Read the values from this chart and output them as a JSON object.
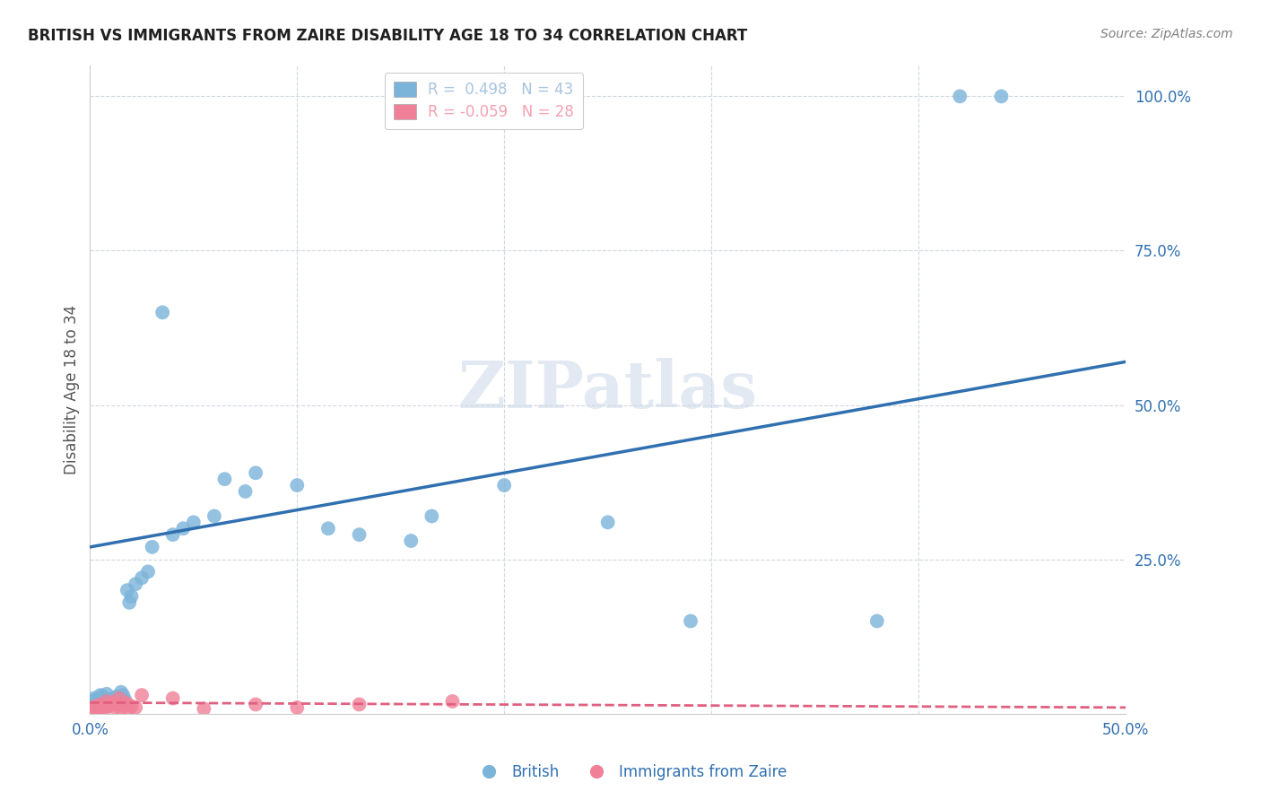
{
  "title": "BRITISH VS IMMIGRANTS FROM ZAIRE DISABILITY AGE 18 TO 34 CORRELATION CHART",
  "source": "Source: ZipAtlas.com",
  "ylabel": "Disability Age 18 to 34",
  "xlim": [
    0.0,
    0.5
  ],
  "ylim": [
    0.0,
    1.05
  ],
  "legend_items": [
    {
      "label": "R =  0.498   N = 43",
      "color": "#a8c4e0"
    },
    {
      "label": "R = -0.059   N = 28",
      "color": "#f4a0b0"
    }
  ],
  "brit_x": [
    0.001,
    0.002,
    0.003,
    0.004,
    0.005,
    0.006,
    0.007,
    0.008,
    0.009,
    0.01,
    0.011,
    0.012,
    0.013,
    0.014,
    0.015,
    0.016,
    0.017,
    0.018,
    0.019,
    0.02,
    0.022,
    0.025,
    0.028,
    0.03,
    0.035,
    0.04,
    0.045,
    0.05,
    0.06,
    0.065,
    0.075,
    0.08,
    0.1,
    0.115,
    0.13,
    0.155,
    0.165,
    0.2,
    0.25,
    0.29,
    0.38,
    0.42,
    0.44
  ],
  "brit_y": [
    0.02,
    0.025,
    0.022,
    0.018,
    0.03,
    0.028,
    0.024,
    0.032,
    0.02,
    0.018,
    0.025,
    0.022,
    0.028,
    0.02,
    0.035,
    0.03,
    0.022,
    0.2,
    0.18,
    0.19,
    0.21,
    0.22,
    0.23,
    0.27,
    0.65,
    0.29,
    0.3,
    0.31,
    0.32,
    0.38,
    0.36,
    0.39,
    0.37,
    0.3,
    0.29,
    0.28,
    0.32,
    0.37,
    0.31,
    0.15,
    0.15,
    1.0,
    1.0
  ],
  "zaire_x": [
    0.001,
    0.002,
    0.003,
    0.004,
    0.005,
    0.006,
    0.007,
    0.008,
    0.009,
    0.01,
    0.011,
    0.012,
    0.013,
    0.014,
    0.015,
    0.016,
    0.017,
    0.018,
    0.019,
    0.02,
    0.022,
    0.025,
    0.04,
    0.055,
    0.08,
    0.1,
    0.13,
    0.175
  ],
  "zaire_y": [
    0.01,
    0.008,
    0.012,
    0.006,
    0.015,
    0.01,
    0.008,
    0.02,
    0.012,
    0.015,
    0.018,
    0.01,
    0.015,
    0.025,
    0.008,
    0.012,
    0.018,
    0.015,
    0.008,
    0.012,
    0.01,
    0.03,
    0.025,
    0.008,
    0.015,
    0.01,
    0.015,
    0.02
  ],
  "british_color": "#7bb3d9",
  "zaire_color": "#f08098",
  "british_line_color": "#3070b0",
  "zaire_line_color": "#e06080",
  "watermark": "ZIPatlas",
  "background_color": "#ffffff",
  "grid_color": "#d0d8e0",
  "title_color": "#202020",
  "axis_label_color": "#3070b0",
  "right_tick_color": "#3070b0",
  "brit_line_x0": 0.0,
  "brit_line_y0": 0.27,
  "brit_line_x1": 0.5,
  "brit_line_y1": 0.57,
  "zaire_line_x0": 0.0,
  "zaire_line_y0": 0.018,
  "zaire_line_x1": 0.5,
  "zaire_line_y1": 0.01
}
